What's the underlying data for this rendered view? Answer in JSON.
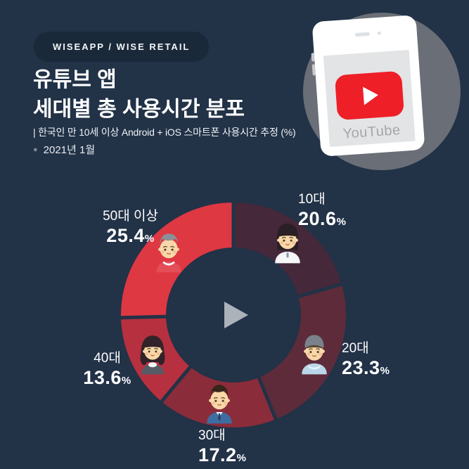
{
  "badge": {
    "label": "WISEAPP / WISE RETAIL"
  },
  "header": {
    "title_line1": "유튜브 앱",
    "title_line2": "세대별 총 사용시간 분포",
    "subtitle": "| 한국인 만 10세 이상 Android + iOS 스마트폰 사용시간 추정 (%)",
    "bullet": "●",
    "date_note": "2021년 1월"
  },
  "phone": {
    "app_label": "YouTube",
    "logo_color": "#ee1f27"
  },
  "colors": {
    "background": "#223247",
    "play_icon": "#abb2ba"
  },
  "chart_data": {
    "type": "pie",
    "donut": true,
    "title": "유튜브 앱 세대별 총 사용시간 분포",
    "unit": "%",
    "direction": "clockwise",
    "start_angle_deg": 0,
    "categories": [
      "10대",
      "20대",
      "30대",
      "40대",
      "50대 이상"
    ],
    "values": [
      20.6,
      23.3,
      17.2,
      13.6,
      25.4
    ],
    "colors": [
      "#45283a",
      "#5e2b3b",
      "#8b2c3a",
      "#b7303f",
      "#de3843"
    ],
    "avatars": [
      "teen-girl",
      "young-man-beanie",
      "man-in-suit",
      "woman-curly-hair",
      "gray-haired-man"
    ],
    "center_icon": "play",
    "legend": "none"
  }
}
